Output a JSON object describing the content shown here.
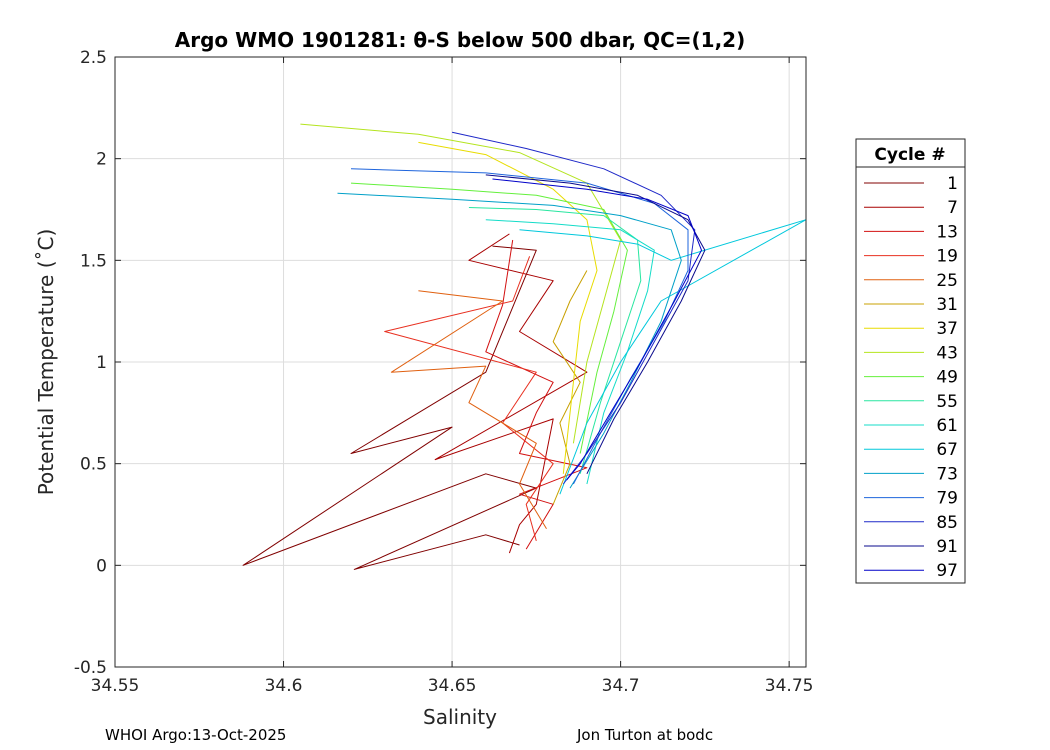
{
  "chart_data": {
    "type": "line",
    "title": "Argo WMO 1901281: θ-S below 500 dbar,  QC=(1,2)",
    "xlabel": "Salinity",
    "ylabel": "Potential Temperature (˚C)",
    "xlim": [
      34.55,
      34.755
    ],
    "ylim": [
      -0.5,
      2.5
    ],
    "xticks": [
      34.55,
      34.6,
      34.65,
      34.7,
      34.75
    ],
    "xtick_labels": [
      "34.55",
      "34.6",
      "34.65",
      "34.7",
      "34.75"
    ],
    "yticks": [
      -0.5,
      0,
      0.5,
      1,
      1.5,
      2,
      2.5
    ],
    "ytick_labels": [
      "-0.5",
      "0",
      "0.5",
      "1",
      "1.5",
      "2",
      "2.5"
    ],
    "grid": true,
    "legend": {
      "title": "Cycle #",
      "position": "right",
      "entries": [
        {
          "label": "1",
          "color": "#800000"
        },
        {
          "label": "7",
          "color": "#a80000"
        },
        {
          "label": "13",
          "color": "#d21010"
        },
        {
          "label": "19",
          "color": "#e83020"
        },
        {
          "label": "25",
          "color": "#e06010"
        },
        {
          "label": "31",
          "color": "#c8a000"
        },
        {
          "label": "37",
          "color": "#e8dc00"
        },
        {
          "label": "43",
          "color": "#b4e41e"
        },
        {
          "label": "49",
          "color": "#64f03c"
        },
        {
          "label": "55",
          "color": "#28e6a0"
        },
        {
          "label": "61",
          "color": "#14dcc8"
        },
        {
          "label": "67",
          "color": "#00c8dc"
        },
        {
          "label": "73",
          "color": "#00a0c8"
        },
        {
          "label": "79",
          "color": "#1e64dc"
        },
        {
          "label": "85",
          "color": "#1e28c8"
        },
        {
          "label": "91",
          "color": "#0a0a8c"
        },
        {
          "label": "97",
          "color": "#0000c8"
        }
      ]
    },
    "series": [
      {
        "name": "1",
        "color": "#800000",
        "x": [
          34.662,
          34.675,
          34.66,
          34.64,
          34.62,
          34.65,
          34.588,
          34.66,
          34.675,
          34.621,
          34.66,
          34.67
        ],
        "y": [
          1.57,
          1.55,
          0.95,
          0.75,
          0.55,
          0.68,
          0.0,
          0.45,
          0.38,
          -0.02,
          0.15,
          0.1
        ]
      },
      {
        "name": "7",
        "color": "#a80000",
        "x": [
          34.667,
          34.655,
          34.68,
          34.67,
          34.69,
          34.645,
          34.68,
          34.675,
          34.67,
          34.667
        ],
        "y": [
          1.63,
          1.5,
          1.4,
          1.15,
          0.95,
          0.52,
          0.72,
          0.3,
          0.2,
          0.06
        ]
      },
      {
        "name": "13",
        "color": "#d21010",
        "x": [
          34.668,
          34.665,
          34.66,
          34.68,
          34.675,
          34.67,
          34.69,
          34.67,
          34.68,
          34.672
        ],
        "y": [
          1.6,
          1.28,
          1.05,
          0.9,
          0.75,
          0.55,
          0.48,
          0.35,
          0.3,
          0.08
        ]
      },
      {
        "name": "19",
        "color": "#e83020",
        "x": [
          34.673,
          34.668,
          34.63,
          34.675,
          34.665,
          34.68,
          34.672,
          34.675
        ],
        "y": [
          1.52,
          1.3,
          1.15,
          0.95,
          0.7,
          0.5,
          0.3,
          0.12
        ]
      },
      {
        "name": "25",
        "color": "#e06010",
        "x": [
          34.64,
          34.665,
          34.632,
          34.66,
          34.655,
          34.675,
          34.67,
          34.678
        ],
        "y": [
          1.35,
          1.3,
          0.95,
          0.98,
          0.8,
          0.6,
          0.4,
          0.18
        ]
      },
      {
        "name": "31",
        "color": "#c8a000",
        "x": [
          34.69,
          34.685,
          34.68,
          34.688,
          34.682,
          34.685,
          34.68
        ],
        "y": [
          1.45,
          1.3,
          1.1,
          0.9,
          0.7,
          0.5,
          0.3
        ]
      },
      {
        "name": "37",
        "color": "#e8dc00",
        "x": [
          34.64,
          34.66,
          34.68,
          34.69,
          34.693,
          34.688,
          34.686,
          34.683
        ],
        "y": [
          2.08,
          2.02,
          1.85,
          1.7,
          1.45,
          1.2,
          0.9,
          0.45
        ]
      },
      {
        "name": "43",
        "color": "#b4e41e",
        "x": [
          34.605,
          34.64,
          34.67,
          34.69,
          34.7,
          34.695,
          34.69,
          34.686
        ],
        "y": [
          2.17,
          2.12,
          2.03,
          1.88,
          1.6,
          1.3,
          1.0,
          0.6
        ]
      },
      {
        "name": "49",
        "color": "#64f03c",
        "x": [
          34.62,
          34.65,
          34.675,
          34.695,
          34.702,
          34.698,
          34.693,
          34.688
        ],
        "y": [
          1.88,
          1.85,
          1.82,
          1.75,
          1.55,
          1.25,
          0.95,
          0.55
        ]
      },
      {
        "name": "55",
        "color": "#28e6a0",
        "x": [
          34.655,
          34.675,
          34.695,
          34.705,
          34.706,
          34.7,
          34.694,
          34.688
        ],
        "y": [
          1.76,
          1.75,
          1.72,
          1.6,
          1.4,
          1.1,
          0.8,
          0.45
        ]
      },
      {
        "name": "61",
        "color": "#14dcc8",
        "x": [
          34.66,
          34.68,
          34.7,
          34.71,
          34.708,
          34.702,
          34.695,
          34.69
        ],
        "y": [
          1.7,
          1.68,
          1.65,
          1.55,
          1.35,
          1.05,
          0.75,
          0.4
        ]
      },
      {
        "name": "67",
        "color": "#00c8dc",
        "x": [
          34.67,
          34.69,
          34.705,
          34.715,
          34.755,
          34.712,
          34.7,
          34.69,
          34.682
        ],
        "y": [
          1.65,
          1.62,
          1.58,
          1.5,
          1.7,
          1.3,
          1.0,
          0.7,
          0.35
        ]
      },
      {
        "name": "73",
        "color": "#00a0c8",
        "x": [
          34.616,
          34.65,
          34.68,
          34.7,
          34.715,
          34.718,
          34.712,
          34.703,
          34.695,
          34.685
        ],
        "y": [
          1.83,
          1.8,
          1.77,
          1.72,
          1.65,
          1.5,
          1.2,
          0.9,
          0.65,
          0.38
        ]
      },
      {
        "name": "79",
        "color": "#1e64dc",
        "x": [
          34.62,
          34.66,
          34.69,
          34.71,
          34.72,
          34.72,
          34.713,
          34.703,
          34.694,
          34.686
        ],
        "y": [
          1.95,
          1.93,
          1.88,
          1.78,
          1.65,
          1.45,
          1.2,
          0.92,
          0.65,
          0.4
        ]
      },
      {
        "name": "85",
        "color": "#1e28c8",
        "x": [
          34.65,
          34.672,
          34.695,
          34.712,
          34.722,
          34.72,
          34.71,
          34.7,
          34.69,
          34.683
        ],
        "y": [
          2.13,
          2.05,
          1.95,
          1.82,
          1.65,
          1.4,
          1.1,
          0.8,
          0.55,
          0.4
        ]
      },
      {
        "name": "91",
        "color": "#0a0a8c",
        "x": [
          34.66,
          34.685,
          34.705,
          34.72,
          34.725,
          34.718,
          34.708,
          34.698,
          34.69
        ],
        "y": [
          1.92,
          1.88,
          1.82,
          1.7,
          1.55,
          1.3,
          1.0,
          0.72,
          0.45
        ]
      },
      {
        "name": "97",
        "color": "#0000c8",
        "x": [
          34.662,
          34.69,
          34.708,
          34.72,
          34.724,
          34.716,
          34.706,
          34.697,
          34.688,
          34.684
        ],
        "y": [
          1.9,
          1.85,
          1.8,
          1.72,
          1.55,
          1.3,
          1.0,
          0.75,
          0.5,
          0.42
        ]
      }
    ]
  },
  "footer": {
    "left": "WHOI Argo:13-Oct-2025",
    "right": "Jon Turton at bodc"
  }
}
